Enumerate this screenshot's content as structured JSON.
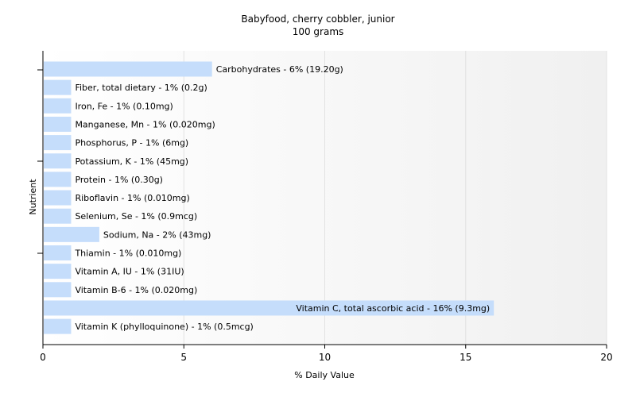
{
  "chart_data": {
    "type": "bar",
    "orientation": "horizontal",
    "title": "Babyfood, cherry cobbler, junior",
    "subtitle": "100 grams",
    "xlabel": "% Daily Value",
    "ylabel": "Nutrient",
    "xlim": [
      0,
      20
    ],
    "xticks": [
      "0",
      "5",
      "10",
      "15",
      "20"
    ],
    "grid": true,
    "bar_color": "#c5ddfb",
    "categories": [
      "Carbohydrates",
      "Fiber, total dietary",
      "Iron, Fe",
      "Manganese, Mn",
      "Phosphorus, P",
      "Potassium, K",
      "Protein",
      "Riboflavin",
      "Selenium, Se",
      "Sodium, Na",
      "Thiamin",
      "Vitamin A, IU",
      "Vitamin B-6",
      "Vitamin C, total ascorbic acid",
      "Vitamin K (phylloquinone)"
    ],
    "values": [
      6,
      1,
      1,
      1,
      1,
      1,
      1,
      1,
      1,
      2,
      1,
      1,
      1,
      16,
      1
    ],
    "labels": [
      "Carbohydrates - 6% (19.20g)",
      "Fiber, total dietary - 1% (0.2g)",
      "Iron, Fe - 1% (0.10mg)",
      "Manganese, Mn - 1% (0.020mg)",
      "Phosphorus, P - 1% (6mg)",
      "Potassium, K - 1% (45mg)",
      "Protein - 1% (0.30g)",
      "Riboflavin - 1% (0.010mg)",
      "Selenium, Se - 1% (0.9mcg)",
      "Sodium, Na - 2% (43mg)",
      "Thiamin - 1% (0.010mg)",
      "Vitamin A, IU - 1% (31IU)",
      "Vitamin B-6 - 1% (0.020mg)",
      "Vitamin C, total ascorbic acid - 16% (9.3mg)",
      "Vitamin K (phylloquinone) - 1% (0.5mcg)"
    ]
  }
}
